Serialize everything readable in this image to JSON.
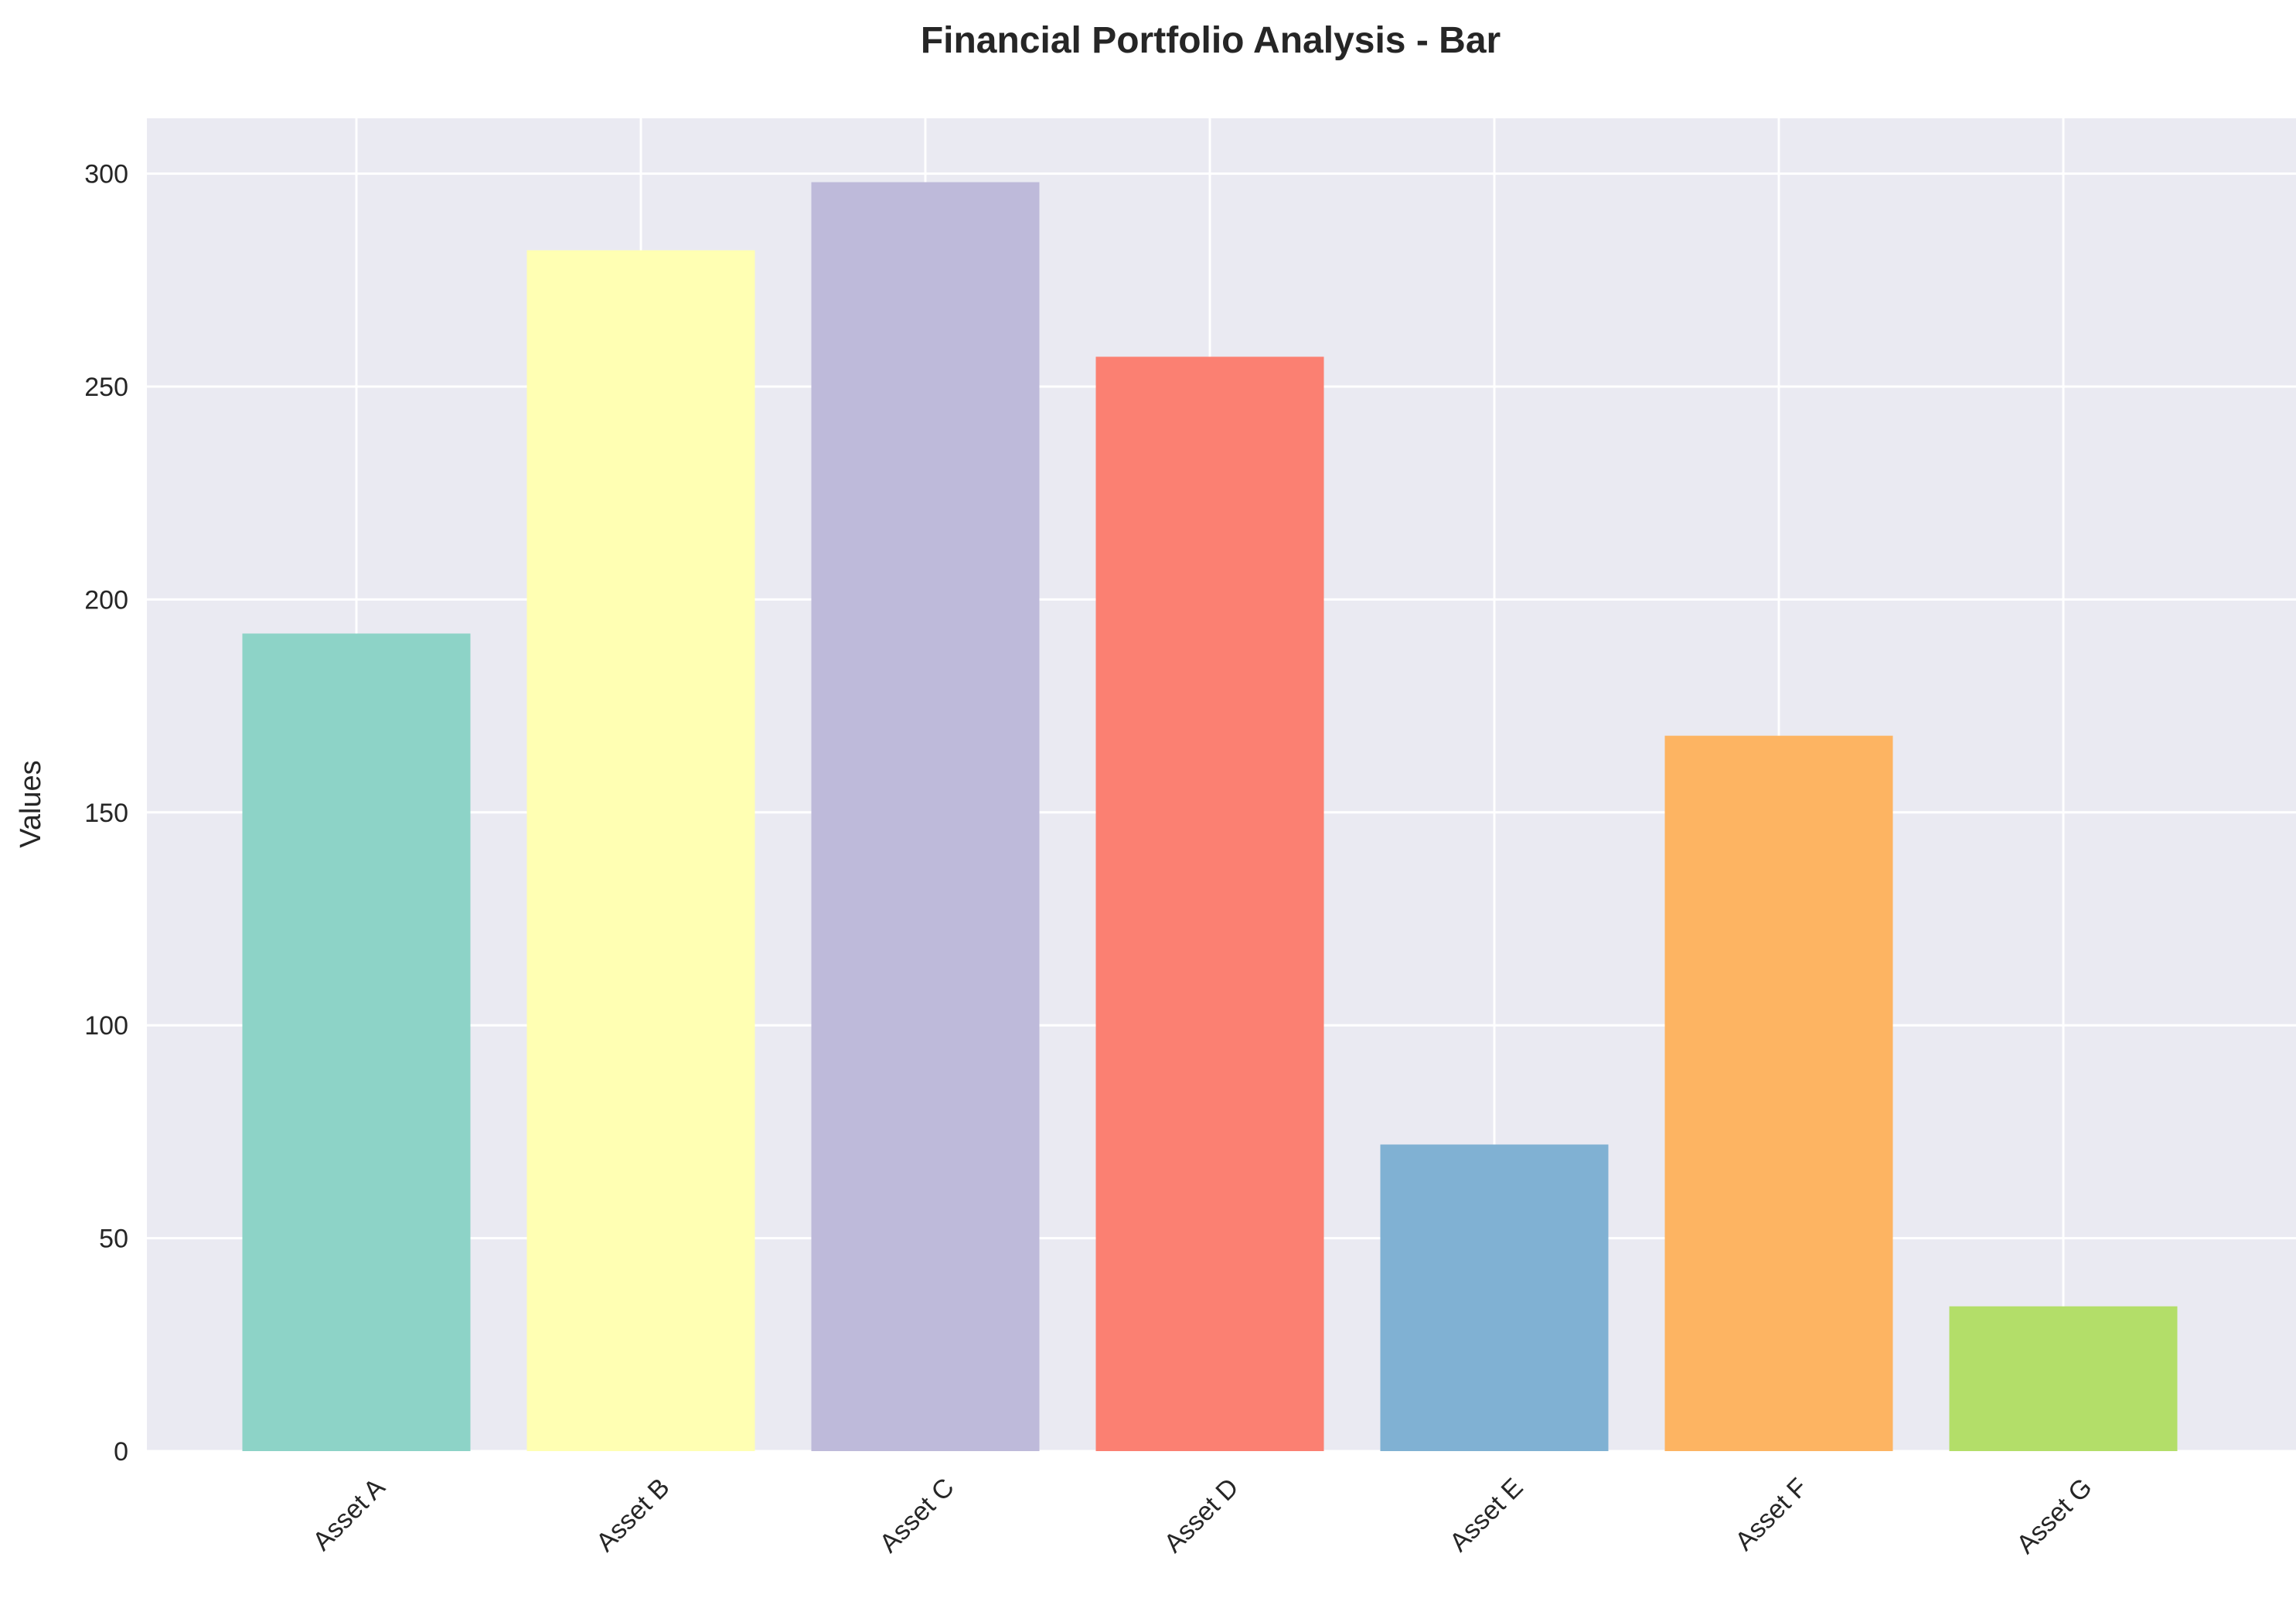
{
  "chart_data": {
    "type": "bar",
    "title": "Financial Portfolio Analysis - Bar",
    "xlabel": "",
    "ylabel": "Values",
    "categories": [
      "Asset A",
      "Asset B",
      "Asset C",
      "Asset D",
      "Asset E",
      "Asset F",
      "Asset G"
    ],
    "values": [
      192,
      282,
      298,
      257,
      72,
      168,
      34
    ],
    "colors": [
      "#8dd3c7",
      "#ffffb3",
      "#bebada",
      "#fb8072",
      "#80b1d3",
      "#fdb462",
      "#b3de69"
    ],
    "ylim": [
      0,
      313
    ],
    "yticks": [
      0,
      50,
      100,
      150,
      200,
      250,
      300
    ],
    "grid": true,
    "x_tick_rotation": 45,
    "background": "#eaeaf2",
    "grid_color": "#ffffff"
  }
}
